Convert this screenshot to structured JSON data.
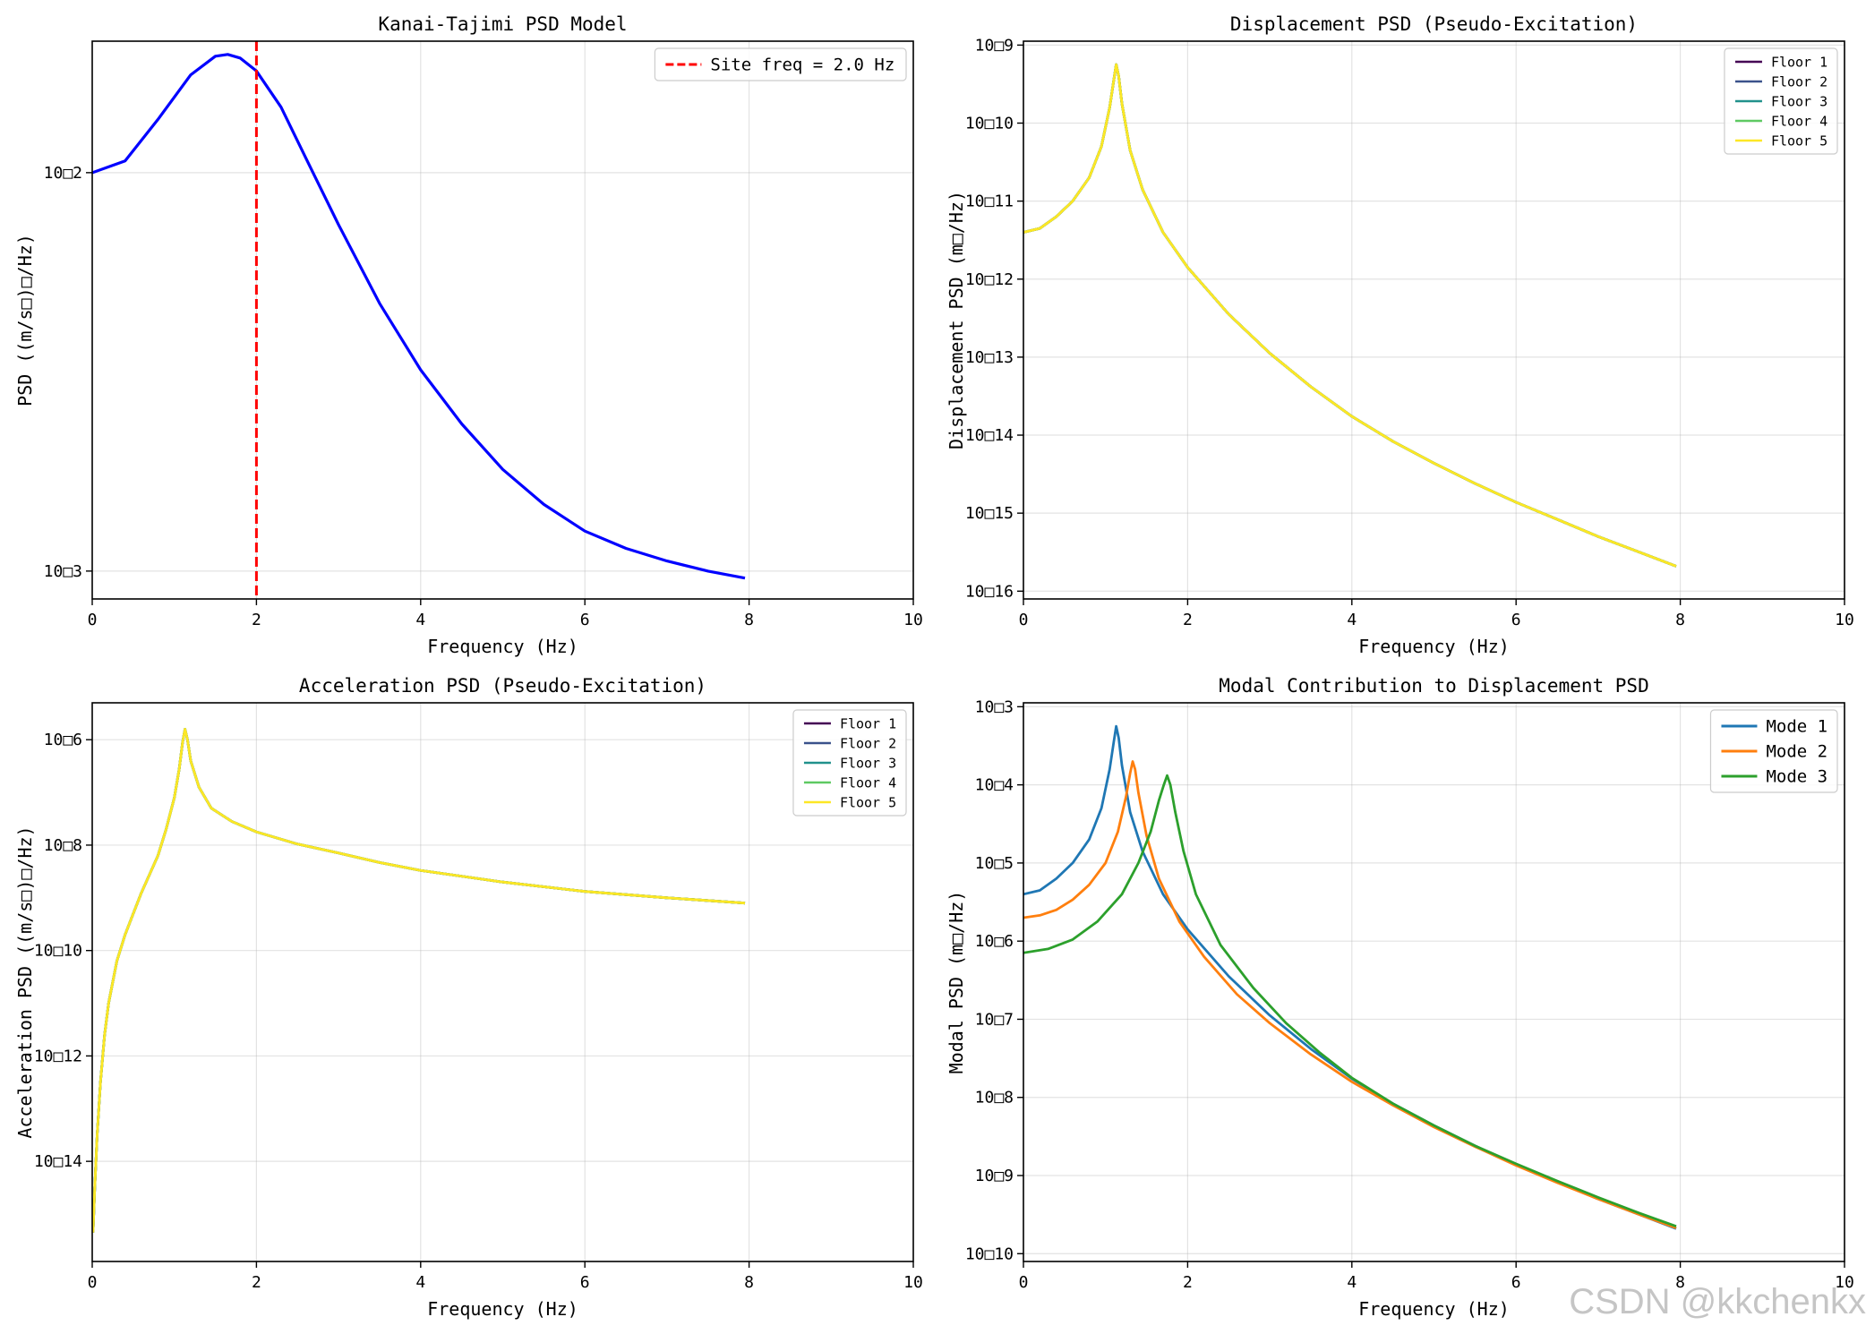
{
  "watermark": "CSDN @kkchenkx",
  "chart_data": [
    {
      "id": "kanai",
      "type": "line",
      "title": "Kanai-Tajimi PSD Model",
      "xlabel": "Frequency (Hz)",
      "ylabel": "PSD ((m/s□)□/Hz)",
      "xlim": [
        0,
        10
      ],
      "ylim_log10": [
        -3.07,
        -1.67
      ],
      "xscale": "linear",
      "yscale": "log",
      "grid": true,
      "xticks": [
        0,
        2,
        4,
        6,
        8,
        10
      ],
      "yticks": [
        {
          "value": -2,
          "label": "10□2"
        },
        {
          "value": -3,
          "label": "10□3"
        }
      ],
      "legend": {
        "position": "top-right",
        "font_size": "large"
      },
      "vlines": [
        {
          "x": 2.0,
          "label": "Site freq = 2.0 Hz",
          "color": "#ff0000",
          "dash": true
        }
      ],
      "series": [
        {
          "color": "#0000ff",
          "width": 3.2,
          "x": [
            0,
            0.4,
            0.8,
            1.2,
            1.5,
            1.65,
            1.8,
            2.0,
            2.3,
            2.6,
            3.0,
            3.5,
            4.0,
            4.5,
            5.0,
            5.5,
            6.0,
            6.5,
            7.0,
            7.5,
            7.95
          ],
          "y": [
            0.01,
            0.0107,
            0.0136,
            0.0176,
            0.0196,
            0.0198,
            0.0194,
            0.018,
            0.0146,
            0.0109,
            0.0074,
            0.0047,
            0.0032,
            0.00234,
            0.0018,
            0.00147,
            0.00126,
            0.00114,
            0.00106,
            0.001,
            0.00096
          ]
        }
      ]
    },
    {
      "id": "disp",
      "type": "line",
      "title": "Displacement PSD (Pseudo-Excitation)",
      "xlabel": "Frequency (Hz)",
      "ylabel": "Displacement PSD (m□/Hz)",
      "xlim": [
        0,
        10
      ],
      "ylim_log10": [
        -16.1,
        -8.95
      ],
      "xscale": "linear",
      "yscale": "log",
      "grid": true,
      "xticks": [
        0,
        2,
        4,
        6,
        8,
        10
      ],
      "yticks": [
        {
          "value": -9,
          "label": "10□9"
        },
        {
          "value": -10,
          "label": "10□10"
        },
        {
          "value": -11,
          "label": "10□11"
        },
        {
          "value": -12,
          "label": "10□12"
        },
        {
          "value": -13,
          "label": "10□13"
        },
        {
          "value": -14,
          "label": "10□14"
        },
        {
          "value": -15,
          "label": "10□15"
        },
        {
          "value": -16,
          "label": "10□16"
        }
      ],
      "legend": {
        "position": "top-right",
        "font_size": "small"
      },
      "shared_curve": {
        "x": [
          0,
          0.2,
          0.4,
          0.6,
          0.8,
          0.95,
          1.05,
          1.1,
          1.13,
          1.16,
          1.2,
          1.3,
          1.45,
          1.7,
          2.0,
          2.5,
          3.0,
          3.5,
          4.0,
          4.5,
          5.0,
          5.5,
          6.0,
          6.5,
          7.0,
          7.5,
          7.95
        ],
        "log10y": [
          -11.4,
          -11.35,
          -11.2,
          -11.0,
          -10.7,
          -10.3,
          -9.8,
          -9.45,
          -9.25,
          -9.4,
          -9.75,
          -10.35,
          -10.85,
          -11.4,
          -11.85,
          -12.45,
          -12.95,
          -13.38,
          -13.76,
          -14.08,
          -14.36,
          -14.62,
          -14.86,
          -15.08,
          -15.3,
          -15.5,
          -15.68
        ]
      },
      "series": [
        {
          "name": "Floor 1",
          "color": "#440154"
        },
        {
          "name": "Floor 2",
          "color": "#3b528b"
        },
        {
          "name": "Floor 3",
          "color": "#21918c"
        },
        {
          "name": "Floor 4",
          "color": "#5ec962"
        },
        {
          "name": "Floor 5",
          "color": "#fde725"
        }
      ]
    },
    {
      "id": "accel",
      "type": "line",
      "title": "Acceleration PSD (Pseudo-Excitation)",
      "xlabel": "Frequency (Hz)",
      "ylabel": "Acceleration PSD ((m/s□)□/Hz)",
      "xlim": [
        0,
        10
      ],
      "ylim_log10": [
        -15.9,
        -5.3
      ],
      "xscale": "linear",
      "yscale": "log",
      "grid": true,
      "xticks": [
        0,
        2,
        4,
        6,
        8,
        10
      ],
      "yticks": [
        {
          "value": -6,
          "label": "10□6"
        },
        {
          "value": -8,
          "label": "10□8"
        },
        {
          "value": -10,
          "label": "10□10"
        },
        {
          "value": -12,
          "label": "10□12"
        },
        {
          "value": -14,
          "label": "10□14"
        }
      ],
      "legend": {
        "position": "top-right",
        "font_size": "small"
      },
      "shared_curve": {
        "x": [
          0.01,
          0.03,
          0.06,
          0.1,
          0.15,
          0.2,
          0.3,
          0.4,
          0.5,
          0.6,
          0.7,
          0.8,
          0.9,
          1.0,
          1.06,
          1.1,
          1.13,
          1.16,
          1.2,
          1.3,
          1.45,
          1.7,
          2.0,
          2.5,
          3.0,
          3.5,
          4.0,
          5.0,
          6.0,
          7.0,
          7.95
        ],
        "log10y": [
          -15.35,
          -14.5,
          -13.5,
          -12.5,
          -11.6,
          -11.0,
          -10.2,
          -9.7,
          -9.3,
          -8.9,
          -8.55,
          -8.2,
          -7.7,
          -7.1,
          -6.55,
          -6.05,
          -5.8,
          -6.0,
          -6.4,
          -6.9,
          -7.3,
          -7.55,
          -7.75,
          -7.98,
          -8.15,
          -8.33,
          -8.48,
          -8.7,
          -8.88,
          -9.0,
          -9.1
        ]
      },
      "series": [
        {
          "name": "Floor 1",
          "color": "#440154"
        },
        {
          "name": "Floor 2",
          "color": "#3b528b"
        },
        {
          "name": "Floor 3",
          "color": "#21918c"
        },
        {
          "name": "Floor 4",
          "color": "#5ec962"
        },
        {
          "name": "Floor 5",
          "color": "#fde725"
        }
      ]
    },
    {
      "id": "modal",
      "type": "line",
      "title": "Modal Contribution to Displacement PSD",
      "xlabel": "Frequency (Hz)",
      "ylabel": "Modal PSD (m□/Hz)",
      "xlim": [
        0,
        10
      ],
      "ylim_log10": [
        -10.1,
        -2.95
      ],
      "xscale": "linear",
      "yscale": "log",
      "grid": true,
      "xticks": [
        0,
        2,
        4,
        6,
        8,
        10
      ],
      "yticks": [
        {
          "value": -3,
          "label": "10□3"
        },
        {
          "value": -4,
          "label": "10□4"
        },
        {
          "value": -5,
          "label": "10□5"
        },
        {
          "value": -6,
          "label": "10□6"
        },
        {
          "value": -7,
          "label": "10□7"
        },
        {
          "value": -8,
          "label": "10□8"
        },
        {
          "value": -9,
          "label": "10□9"
        },
        {
          "value": -10,
          "label": "10□10"
        }
      ],
      "legend": {
        "position": "top-right",
        "font_size": "large"
      },
      "series": [
        {
          "name": "Mode 1",
          "color": "#1f77b4",
          "x": [
            0,
            0.2,
            0.4,
            0.6,
            0.8,
            0.95,
            1.05,
            1.1,
            1.13,
            1.16,
            1.2,
            1.3,
            1.45,
            1.7,
            2.0,
            2.5,
            3.0,
            3.5,
            4.0,
            4.5,
            5.0,
            5.5,
            6.0,
            6.5,
            7.0,
            7.5,
            7.95
          ],
          "log10y": [
            -5.4,
            -5.35,
            -5.2,
            -5.0,
            -4.7,
            -4.3,
            -3.8,
            -3.45,
            -3.25,
            -3.4,
            -3.75,
            -4.35,
            -4.85,
            -5.4,
            -5.85,
            -6.45,
            -6.95,
            -7.38,
            -7.76,
            -8.08,
            -8.36,
            -8.62,
            -8.86,
            -9.08,
            -9.3,
            -9.5,
            -9.68
          ]
        },
        {
          "name": "Mode 2",
          "color": "#ff7f0e",
          "x": [
            0,
            0.2,
            0.4,
            0.6,
            0.8,
            1.0,
            1.15,
            1.25,
            1.3,
            1.33,
            1.36,
            1.4,
            1.5,
            1.65,
            1.9,
            2.2,
            2.6,
            3.0,
            3.5,
            4.0,
            4.5,
            5.0,
            5.5,
            6.0,
            6.5,
            7.0,
            7.5,
            7.95
          ],
          "log10y": [
            -5.7,
            -5.67,
            -5.6,
            -5.47,
            -5.28,
            -5.0,
            -4.6,
            -4.15,
            -3.85,
            -3.7,
            -3.8,
            -4.1,
            -4.65,
            -5.2,
            -5.75,
            -6.2,
            -6.68,
            -7.05,
            -7.45,
            -7.8,
            -8.1,
            -8.38,
            -8.63,
            -8.87,
            -9.09,
            -9.3,
            -9.5,
            -9.67
          ]
        },
        {
          "name": "Mode 3",
          "color": "#2ca02c",
          "x": [
            0,
            0.3,
            0.6,
            0.9,
            1.2,
            1.4,
            1.55,
            1.65,
            1.71,
            1.75,
            1.79,
            1.85,
            1.95,
            2.1,
            2.4,
            2.8,
            3.2,
            3.6,
            4.0,
            4.5,
            5.0,
            5.5,
            6.0,
            6.5,
            7.0,
            7.5,
            7.95
          ],
          "log10y": [
            -6.15,
            -6.1,
            -5.98,
            -5.75,
            -5.4,
            -5.0,
            -4.6,
            -4.2,
            -4.0,
            -3.88,
            -4.0,
            -4.35,
            -4.85,
            -5.4,
            -6.05,
            -6.6,
            -7.05,
            -7.42,
            -7.75,
            -8.08,
            -8.36,
            -8.62,
            -8.85,
            -9.07,
            -9.28,
            -9.48,
            -9.65
          ]
        }
      ]
    }
  ]
}
